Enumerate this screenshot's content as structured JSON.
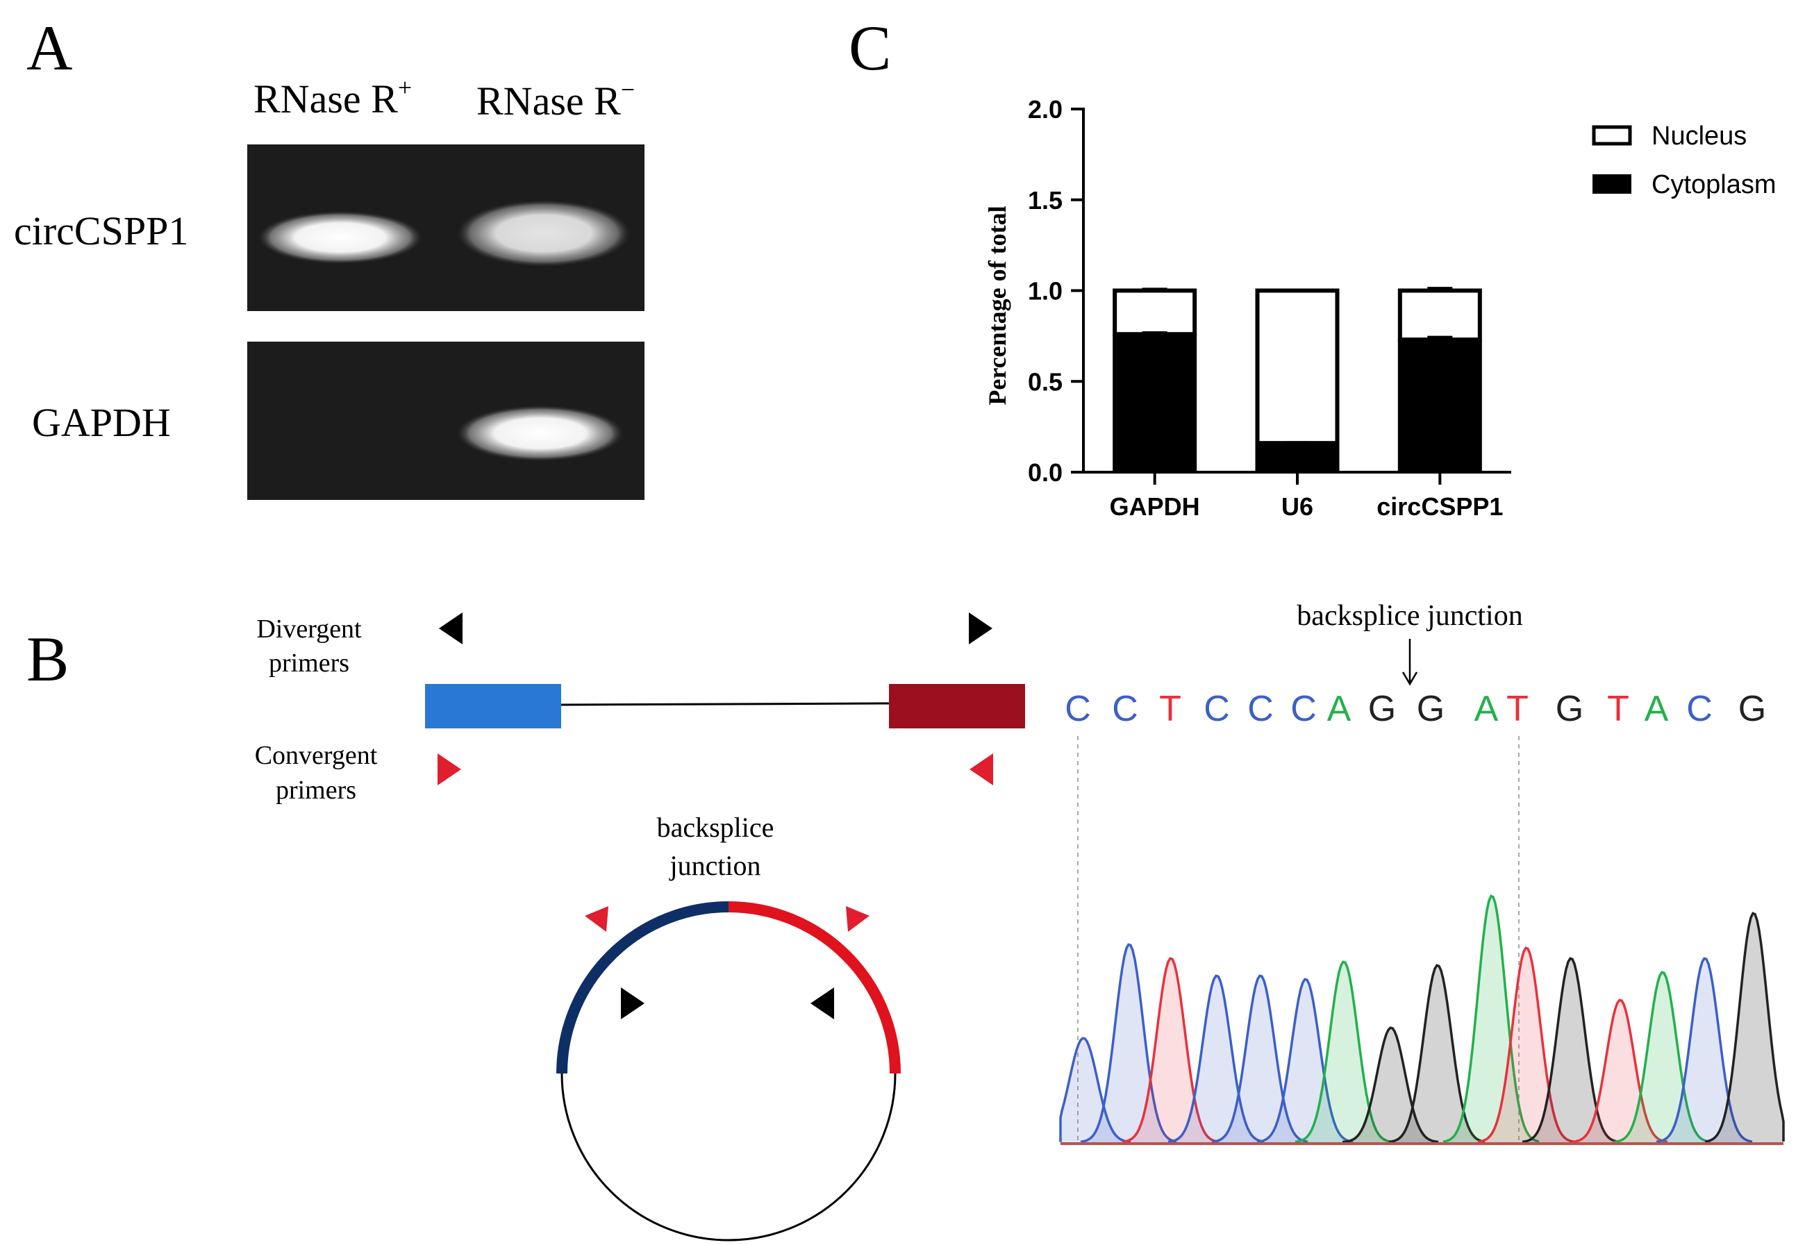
{
  "panel_labels": {
    "a": "A",
    "b": "B",
    "c": "C"
  },
  "panel_a": {
    "col_labels": [
      "RNase R",
      "RNase R"
    ],
    "col_superscripts": [
      "+",
      "−"
    ],
    "row_labels": [
      "circCSPP1",
      "GAPDH"
    ]
  },
  "panel_b": {
    "divergent_label": [
      "Divergent",
      "primers"
    ],
    "convergent_label": [
      "Convergent",
      "primers"
    ],
    "circle_junction_label": [
      "backsplice",
      "junction"
    ],
    "seq_junction_label": "backsplice junction",
    "sequence": [
      "C",
      "C",
      "T",
      "C",
      "C",
      "C",
      "A",
      "G",
      "G",
      "A",
      "T",
      "G",
      "T",
      "A",
      "C",
      "G"
    ],
    "base_colors": {
      "A": "#22b14c",
      "C": "#3c5fc8",
      "G": "#222222",
      "T": "#e8323c"
    },
    "colors": {
      "exon_left": "#2a78d6",
      "exon_right": "#9b0f1f",
      "primer_divergent": "#000000",
      "primer_convergent": "#e01e2e",
      "circle_left": "#0e2f66",
      "circle_right": "#e0121e"
    }
  },
  "chart_data": {
    "type": "bar",
    "stacked": true,
    "categories": [
      "GAPDH",
      "U6",
      "circCSPP1"
    ],
    "series": [
      {
        "name": "Nucleus",
        "values": [
          0.24,
          0.84,
          0.27
        ],
        "totals": [
          1.0,
          1.0,
          1.0
        ],
        "error": [
          0.01,
          0.005,
          0.015
        ],
        "color": "#ffffff"
      },
      {
        "name": "Cytoplasm",
        "values": [
          0.76,
          0.16,
          0.73
        ],
        "error": [
          0.01,
          0.005,
          0.015
        ],
        "color": "#000000"
      }
    ],
    "ylabel": "Percentage of total",
    "xlabel": "",
    "ylim": [
      0,
      2.0
    ],
    "yticks": [
      "0.0",
      "0.5",
      "1.0",
      "1.5",
      "2.0"
    ],
    "legend": [
      "Nucleus",
      "Cytoplasm"
    ],
    "legend_position": "top-right"
  }
}
